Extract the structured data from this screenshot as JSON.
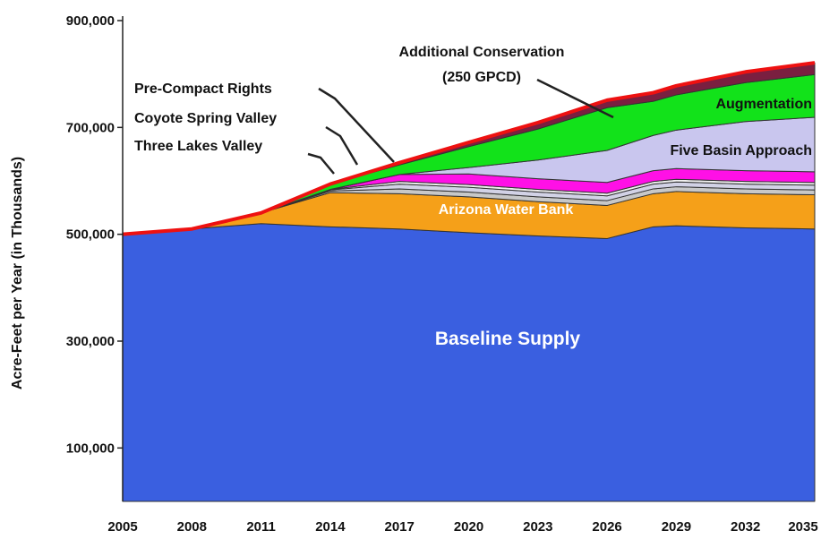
{
  "chart_data": {
    "type": "area",
    "stacked": true,
    "ylabel": "Acre-Feet per Year (in Thousands)",
    "xlabel": "",
    "ylim": [
      0,
      900000
    ],
    "y_ticks": [
      100000,
      300000,
      500000,
      700000,
      900000
    ],
    "y_tick_labels": [
      "100,000",
      "300,000",
      "500,000",
      "700,000",
      "900,000"
    ],
    "x_ticks": [
      2005,
      2008,
      2011,
      2014,
      2017,
      2020,
      2023,
      2026,
      2029,
      2032,
      2035
    ],
    "x_tick_labels": [
      "2005",
      "2008",
      "2011",
      "2014",
      "2017",
      "2020",
      "2023",
      "2026",
      "2029",
      "2032",
      "2035"
    ],
    "grid": false,
    "legend": "none (direct labels)",
    "x": [
      2005,
      2008,
      2011,
      2014,
      2017,
      2020,
      2023,
      2026,
      2028,
      2029,
      2032,
      2035
    ],
    "series": [
      {
        "name": "Baseline Supply",
        "color": "#3A5FE0",
        "values": [
          500000,
          510000,
          520000,
          514000,
          510000,
          503000,
          497000,
          492000,
          514000,
          516000,
          512000,
          510000
        ]
      },
      {
        "name": "Arizona Water Bank",
        "color": "#F5A019",
        "values": [
          0,
          0,
          20000,
          64000,
          66000,
          67000,
          64000,
          62000,
          62000,
          64000,
          64000,
          64000
        ]
      },
      {
        "name": "Three Lakes Valley",
        "color": "#C8C8C8",
        "values": [
          0,
          0,
          0,
          3000,
          9000,
          9000,
          9000,
          9000,
          9000,
          9000,
          9000,
          9000
        ]
      },
      {
        "name": "Coyote Spring Valley",
        "color": "#D2D2E6",
        "values": [
          0,
          0,
          0,
          2000,
          9000,
          9000,
          9000,
          9000,
          9000,
          9000,
          9000,
          9000
        ]
      },
      {
        "name": "Pre-Compact Rights",
        "color": "#F0F0F0",
        "values": [
          0,
          0,
          0,
          1000,
          5000,
          5000,
          5000,
          5000,
          5000,
          5000,
          5000,
          5000
        ]
      },
      {
        "name": "",
        "color": "#FF10E6",
        "values": [
          0,
          0,
          0,
          0,
          13000,
          20000,
          20000,
          20000,
          20000,
          20000,
          20000,
          20000
        ]
      },
      {
        "name": "Five Basin Approach",
        "color": "#C9C6EE",
        "values": [
          0,
          0,
          0,
          0,
          0,
          12000,
          35000,
          60000,
          66000,
          72000,
          92000,
          102000
        ]
      },
      {
        "name": "Augmentation",
        "color": "#12E21A",
        "values": [
          0,
          0,
          0,
          10000,
          18000,
          39000,
          58000,
          80000,
          64000,
          66000,
          73000,
          80000
        ]
      },
      {
        "name": "Additional Conservation (250 GPCD)",
        "color": "#7A1F40",
        "values": [
          0,
          0,
          0,
          0,
          4000,
          8000,
          12000,
          14000,
          16000,
          17000,
          20000,
          22000
        ]
      }
    ],
    "top_line_color": "#EE1111",
    "labels": {
      "baseline": "Baseline Supply",
      "arizona": "Arizona Water Bank",
      "augmentation": "Augmentation",
      "five_basin": "Five Basin Approach",
      "three_lakes": "Three Lakes Valley",
      "coyote": "Coyote Spring Valley",
      "pre_compact": "Pre-Compact Rights",
      "conservation_line1": "Additional Conservation",
      "conservation_line2": "(250 GPCD)"
    }
  }
}
